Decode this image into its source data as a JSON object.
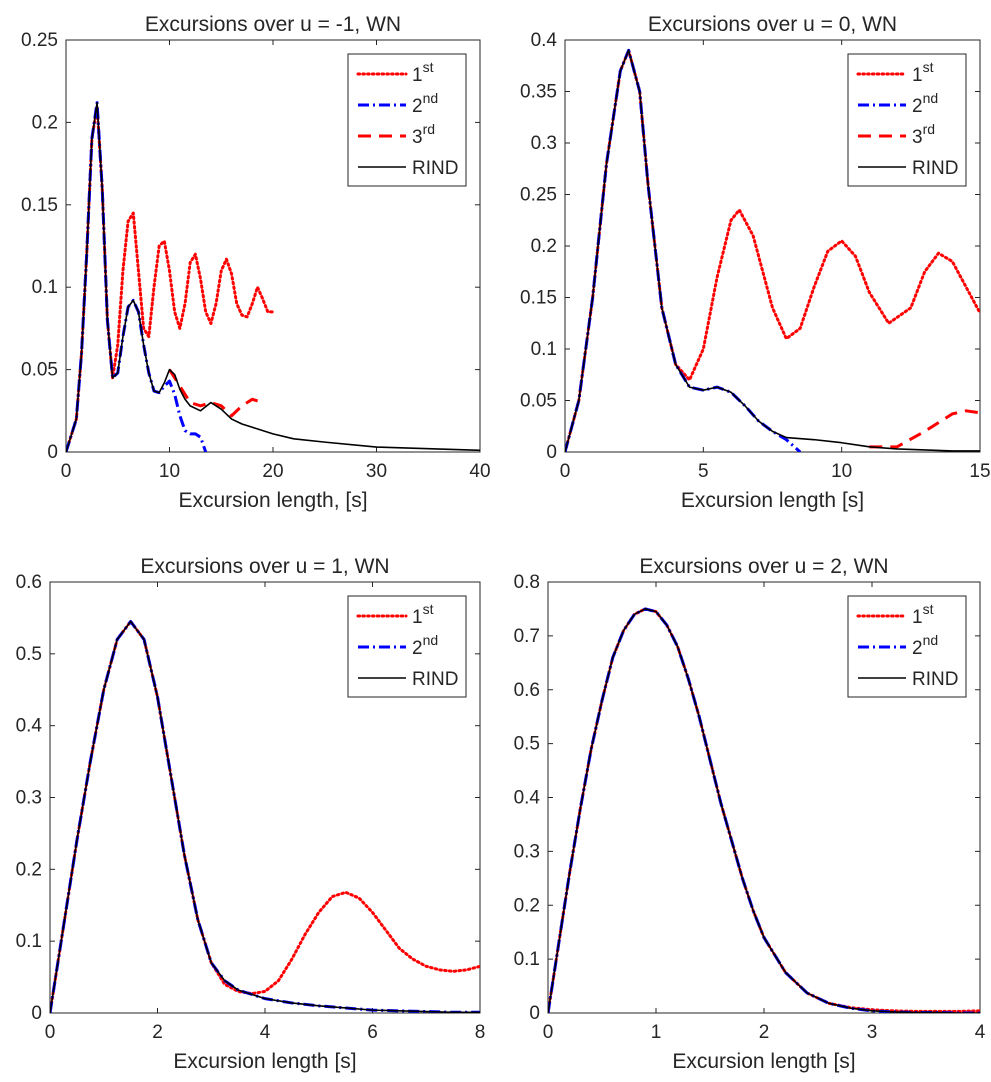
{
  "chart_data": [
    {
      "type": "line",
      "title": "Excursions over u = -1, WN",
      "xlabel": "Excursion length, [s]",
      "ylabel": "",
      "xlim": [
        0,
        40
      ],
      "ylim": [
        0,
        0.25
      ],
      "xticks": [
        "0",
        "10",
        "20",
        "30",
        "40"
      ],
      "yticks": [
        "0",
        "0.05",
        "0.1",
        "0.15",
        "0.2",
        "0.25"
      ],
      "legend_position": "top-right",
      "legend": [
        {
          "base": "1",
          "sup": "st"
        },
        {
          "base": "2",
          "sup": "nd"
        },
        {
          "base": "3",
          "sup": "rd"
        },
        {
          "base": "RIND",
          "sup": ""
        }
      ],
      "series": [
        {
          "style": "dotted",
          "color": "#ff0000",
          "x": [
            0,
            1,
            1.5,
            2,
            2.5,
            3,
            3.5,
            4,
            4.5,
            5,
            5.5,
            6,
            6.5,
            7,
            7.5,
            8,
            8.5,
            9,
            9.5,
            10,
            10.5,
            11,
            11.5,
            12,
            12.5,
            13,
            13.5,
            14,
            14.5,
            15,
            15.5,
            16,
            16.5,
            17,
            17.5,
            18,
            18.5,
            19,
            19.5,
            20
          ],
          "y": [
            0,
            0.02,
            0.06,
            0.12,
            0.19,
            0.21,
            0.16,
            0.08,
            0.045,
            0.065,
            0.11,
            0.14,
            0.145,
            0.11,
            0.075,
            0.07,
            0.1,
            0.125,
            0.128,
            0.11,
            0.085,
            0.075,
            0.09,
            0.115,
            0.12,
            0.105,
            0.085,
            0.078,
            0.09,
            0.11,
            0.117,
            0.108,
            0.09,
            0.083,
            0.082,
            0.09,
            0.1,
            0.093,
            0.085,
            0.085
          ]
        },
        {
          "style": "dashdot",
          "color": "#0000ff",
          "x": [
            0,
            1,
            1.5,
            2,
            2.5,
            3,
            3.5,
            4,
            4.5,
            5,
            5.5,
            6,
            6.5,
            7,
            7.5,
            8,
            8.5,
            9,
            9.5,
            10,
            10.5,
            11,
            11.5,
            12,
            12.5,
            13,
            13.5
          ],
          "y": [
            0,
            0.02,
            0.06,
            0.12,
            0.19,
            0.212,
            0.16,
            0.08,
            0.045,
            0.048,
            0.07,
            0.088,
            0.092,
            0.085,
            0.065,
            0.048,
            0.037,
            0.036,
            0.04,
            0.043,
            0.035,
            0.022,
            0.013,
            0.011,
            0.011,
            0.009,
            0
          ]
        },
        {
          "style": "dashed",
          "color": "#ff0000",
          "x": [
            10,
            11,
            12,
            13,
            14,
            15,
            16,
            17,
            18,
            19
          ],
          "y": [
            0.05,
            0.04,
            0.03,
            0.028,
            0.03,
            0.028,
            0.022,
            0.028,
            0.032,
            0.03
          ]
        },
        {
          "style": "solid",
          "color": "#000000",
          "x": [
            0,
            1,
            1.5,
            2,
            2.5,
            3,
            3.5,
            4,
            4.5,
            5,
            5.5,
            6,
            6.5,
            7,
            7.5,
            8,
            8.5,
            9,
            9.5,
            10,
            10.5,
            11,
            11.5,
            12,
            13,
            14,
            15,
            16,
            17,
            18,
            20,
            22,
            25,
            30,
            35,
            40
          ],
          "y": [
            0,
            0.02,
            0.06,
            0.12,
            0.19,
            0.212,
            0.16,
            0.08,
            0.045,
            0.048,
            0.07,
            0.088,
            0.092,
            0.085,
            0.065,
            0.048,
            0.037,
            0.036,
            0.042,
            0.05,
            0.047,
            0.038,
            0.032,
            0.028,
            0.025,
            0.03,
            0.026,
            0.02,
            0.017,
            0.015,
            0.011,
            0.008,
            0.006,
            0.003,
            0.002,
            0.001
          ]
        }
      ]
    },
    {
      "type": "line",
      "title": "Excursions over u = 0, WN",
      "xlabel": "Excursion length [s]",
      "ylabel": "",
      "xlim": [
        0,
        15
      ],
      "ylim": [
        0,
        0.4
      ],
      "xticks": [
        "0",
        "5",
        "10",
        "15"
      ],
      "yticks": [
        "0",
        "0.05",
        "0.1",
        "0.15",
        "0.2",
        "0.25",
        "0.3",
        "0.35",
        "0.4"
      ],
      "legend_position": "top-right",
      "legend": [
        {
          "base": "1",
          "sup": "st"
        },
        {
          "base": "2",
          "sup": "nd"
        },
        {
          "base": "3",
          "sup": "rd"
        },
        {
          "base": "RIND",
          "sup": ""
        }
      ],
      "series": [
        {
          "style": "dotted",
          "color": "#ff0000",
          "x": [
            0,
            0.5,
            1,
            1.5,
            2,
            2.3,
            2.7,
            3,
            3.5,
            4,
            4.5,
            5,
            5.5,
            6,
            6.3,
            6.8,
            7.5,
            8,
            8.5,
            9,
            9.5,
            10,
            10.5,
            11,
            11.7,
            12.5,
            13,
            13.5,
            14,
            14.5,
            15
          ],
          "y": [
            0,
            0.05,
            0.15,
            0.28,
            0.37,
            0.39,
            0.35,
            0.26,
            0.14,
            0.085,
            0.07,
            0.1,
            0.17,
            0.225,
            0.235,
            0.21,
            0.14,
            0.11,
            0.12,
            0.16,
            0.195,
            0.205,
            0.19,
            0.155,
            0.125,
            0.14,
            0.175,
            0.193,
            0.185,
            0.16,
            0.135
          ]
        },
        {
          "style": "dashdot",
          "color": "#0000ff",
          "x": [
            0,
            0.5,
            1,
            1.5,
            2,
            2.3,
            2.7,
            3,
            3.5,
            4,
            4.5,
            5,
            5.5,
            6,
            6.5,
            7,
            7.5,
            8,
            8.5
          ],
          "y": [
            0,
            0.05,
            0.15,
            0.28,
            0.37,
            0.39,
            0.35,
            0.26,
            0.14,
            0.085,
            0.063,
            0.06,
            0.063,
            0.058,
            0.045,
            0.03,
            0.02,
            0.012,
            0
          ]
        },
        {
          "style": "dashed",
          "color": "#ff0000",
          "x": [
            11,
            12,
            13,
            14,
            14.5,
            15
          ],
          "y": [
            0.005,
            0.005,
            0.02,
            0.037,
            0.04,
            0.038
          ]
        },
        {
          "style": "solid",
          "color": "#000000",
          "x": [
            0,
            0.5,
            1,
            1.5,
            2,
            2.3,
            2.7,
            3,
            3.5,
            4,
            4.5,
            5,
            5.5,
            6,
            6.5,
            7,
            7.5,
            8,
            9,
            10,
            11,
            12,
            13,
            14,
            15
          ],
          "y": [
            0,
            0.05,
            0.15,
            0.28,
            0.37,
            0.39,
            0.35,
            0.26,
            0.14,
            0.085,
            0.063,
            0.06,
            0.063,
            0.058,
            0.045,
            0.03,
            0.02,
            0.014,
            0.012,
            0.009,
            0.005,
            0.003,
            0.002,
            0.001,
            0.001
          ]
        }
      ]
    },
    {
      "type": "line",
      "title": "Excursions over u = 1, WN",
      "xlabel": "Excursion length [s]",
      "ylabel": "",
      "xlim": [
        0,
        8
      ],
      "ylim": [
        0,
        0.6
      ],
      "xticks": [
        "0",
        "2",
        "4",
        "6",
        "8"
      ],
      "yticks": [
        "0",
        "0.1",
        "0.2",
        "0.3",
        "0.4",
        "0.5",
        "0.6"
      ],
      "legend_position": "top-right",
      "legend": [
        {
          "base": "1",
          "sup": "st"
        },
        {
          "base": "2",
          "sup": "nd"
        },
        {
          "base": "RIND",
          "sup": ""
        }
      ],
      "series": [
        {
          "style": "dotted",
          "color": "#ff0000",
          "x": [
            0,
            0.25,
            0.5,
            0.75,
            1,
            1.25,
            1.5,
            1.75,
            2,
            2.25,
            2.5,
            2.75,
            3,
            3.25,
            3.5,
            3.75,
            4,
            4.25,
            4.5,
            4.75,
            5,
            5.25,
            5.5,
            5.75,
            6,
            6.25,
            6.5,
            6.75,
            7,
            7.25,
            7.5,
            7.75,
            8
          ],
          "y": [
            0,
            0.12,
            0.24,
            0.35,
            0.45,
            0.52,
            0.545,
            0.52,
            0.44,
            0.33,
            0.22,
            0.13,
            0.07,
            0.04,
            0.03,
            0.027,
            0.03,
            0.045,
            0.075,
            0.11,
            0.14,
            0.162,
            0.168,
            0.16,
            0.14,
            0.115,
            0.09,
            0.075,
            0.065,
            0.06,
            0.058,
            0.06,
            0.065
          ]
        },
        {
          "style": "dashdot",
          "color": "#0000ff",
          "x": [
            0,
            0.25,
            0.5,
            0.75,
            1,
            1.25,
            1.5,
            1.75,
            2,
            2.25,
            2.5,
            2.75,
            3,
            3.25,
            3.5,
            4,
            4.5,
            5,
            5.5,
            6,
            6.5,
            7,
            7.5,
            8
          ],
          "y": [
            0,
            0.12,
            0.24,
            0.35,
            0.45,
            0.52,
            0.545,
            0.52,
            0.44,
            0.33,
            0.22,
            0.13,
            0.07,
            0.045,
            0.032,
            0.02,
            0.014,
            0.01,
            0.007,
            0.004,
            0.003,
            0.002,
            0.001,
            0.001
          ]
        },
        {
          "style": "solid",
          "color": "#000000",
          "x": [
            0,
            0.25,
            0.5,
            0.75,
            1,
            1.25,
            1.5,
            1.75,
            2,
            2.25,
            2.5,
            2.75,
            3,
            3.25,
            3.5,
            4,
            4.5,
            5,
            5.5,
            6,
            6.5,
            7,
            7.5,
            8
          ],
          "y": [
            0,
            0.12,
            0.24,
            0.35,
            0.45,
            0.52,
            0.545,
            0.52,
            0.44,
            0.33,
            0.22,
            0.13,
            0.07,
            0.045,
            0.032,
            0.02,
            0.014,
            0.01,
            0.007,
            0.004,
            0.003,
            0.002,
            0.001,
            0.001
          ]
        }
      ]
    },
    {
      "type": "line",
      "title": "Excursions over u = 2, WN",
      "xlabel": "Excursion length [s]",
      "ylabel": "",
      "xlim": [
        0,
        4
      ],
      "ylim": [
        0,
        0.8
      ],
      "xticks": [
        "0",
        "1",
        "2",
        "3",
        "4"
      ],
      "yticks": [
        "0",
        "0.1",
        "0.2",
        "0.3",
        "0.4",
        "0.5",
        "0.6",
        "0.7",
        "0.8"
      ],
      "legend_position": "top-right",
      "legend": [
        {
          "base": "1",
          "sup": "st"
        },
        {
          "base": "2",
          "sup": "nd"
        },
        {
          "base": "RIND",
          "sup": ""
        }
      ],
      "series": [
        {
          "style": "dotted",
          "color": "#ff0000",
          "x": [
            0,
            0.1,
            0.2,
            0.3,
            0.4,
            0.5,
            0.6,
            0.7,
            0.8,
            0.9,
            1,
            1.1,
            1.2,
            1.3,
            1.4,
            1.5,
            1.6,
            1.7,
            1.8,
            1.9,
            2,
            2.2,
            2.4,
            2.6,
            2.8,
            3,
            3.2,
            3.4,
            3.6,
            3.8,
            4
          ],
          "y": [
            0,
            0.13,
            0.26,
            0.38,
            0.49,
            0.58,
            0.66,
            0.71,
            0.74,
            0.75,
            0.745,
            0.72,
            0.68,
            0.62,
            0.55,
            0.47,
            0.39,
            0.32,
            0.25,
            0.19,
            0.14,
            0.075,
            0.037,
            0.018,
            0.01,
            0.006,
            0.004,
            0.003,
            0.003,
            0.003,
            0.004
          ]
        },
        {
          "style": "dashdot",
          "color": "#0000ff",
          "x": [
            0,
            0.1,
            0.2,
            0.3,
            0.4,
            0.5,
            0.6,
            0.7,
            0.8,
            0.9,
            1,
            1.1,
            1.2,
            1.3,
            1.4,
            1.5,
            1.6,
            1.7,
            1.8,
            1.9,
            2,
            2.2,
            2.4,
            2.6,
            2.8,
            3,
            3.2,
            3.4,
            3.6,
            3.8,
            4
          ],
          "y": [
            0,
            0.13,
            0.26,
            0.38,
            0.49,
            0.58,
            0.66,
            0.71,
            0.74,
            0.75,
            0.745,
            0.72,
            0.68,
            0.62,
            0.55,
            0.47,
            0.39,
            0.32,
            0.25,
            0.19,
            0.14,
            0.075,
            0.037,
            0.018,
            0.009,
            0.004,
            0.002,
            0.001,
            0.001,
            0,
            0
          ]
        },
        {
          "style": "solid",
          "color": "#000000",
          "x": [
            0,
            0.1,
            0.2,
            0.3,
            0.4,
            0.5,
            0.6,
            0.7,
            0.8,
            0.9,
            1,
            1.1,
            1.2,
            1.3,
            1.4,
            1.5,
            1.6,
            1.7,
            1.8,
            1.9,
            2,
            2.2,
            2.4,
            2.6,
            2.8,
            3,
            3.2,
            3.4,
            3.6,
            3.8,
            4
          ],
          "y": [
            0,
            0.13,
            0.26,
            0.38,
            0.49,
            0.58,
            0.66,
            0.71,
            0.74,
            0.75,
            0.745,
            0.72,
            0.68,
            0.62,
            0.55,
            0.47,
            0.39,
            0.32,
            0.25,
            0.19,
            0.14,
            0.075,
            0.037,
            0.018,
            0.009,
            0.004,
            0.002,
            0.001,
            0.001,
            0,
            0
          ]
        }
      ]
    }
  ]
}
